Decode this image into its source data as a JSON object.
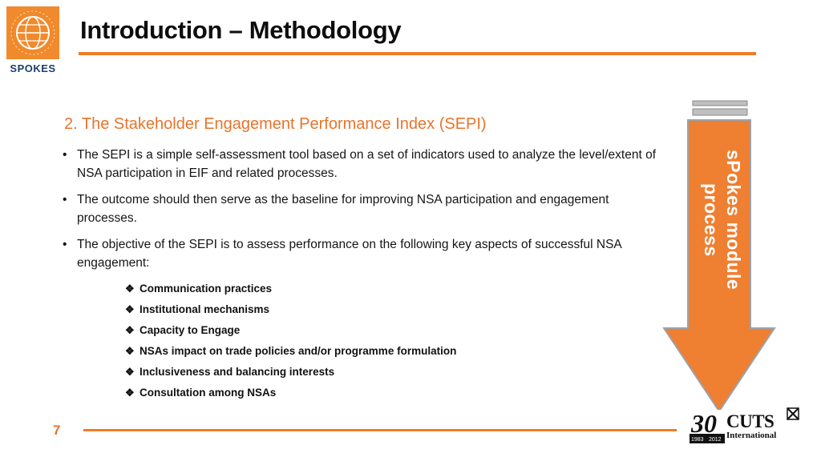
{
  "header": {
    "logo_text": "SPOKES",
    "title": "Introduction – Methodology"
  },
  "main": {
    "subtitle": "2. The Stakeholder Engagement Performance Index (SEPI)",
    "bullets": [
      "The SEPI is a simple self-assessment tool based on a set of indicators used to analyze the level/extent of NSA participation in EIF and related processes.",
      "The outcome should then serve as the baseline for improving NSA participation and engagement processes.",
      "The objective of the SEPI is to assess performance on the following key aspects of successful NSA engagement:"
    ],
    "aspects": [
      "Communication practices",
      "Institutional mechanisms",
      "Capacity to Engage",
      "NSAs impact on trade policies and/or programme formulation",
      "Inclusiveness and balancing interests",
      "Consultation among NSAs"
    ],
    "bullet_glyph": "•",
    "aspect_glyph": "❖"
  },
  "side_arrow": {
    "label": "sPokes module process",
    "color": "#ef7f31"
  },
  "footer": {
    "page_number": "7",
    "cuts_name": "CUTS",
    "cuts_sub": "International",
    "cuts_year_start": "1983",
    "cuts_year_end": "2012",
    "cuts_anniv": "30"
  },
  "colors": {
    "accent": "#f07b26",
    "subtitle": "#e8742a"
  }
}
